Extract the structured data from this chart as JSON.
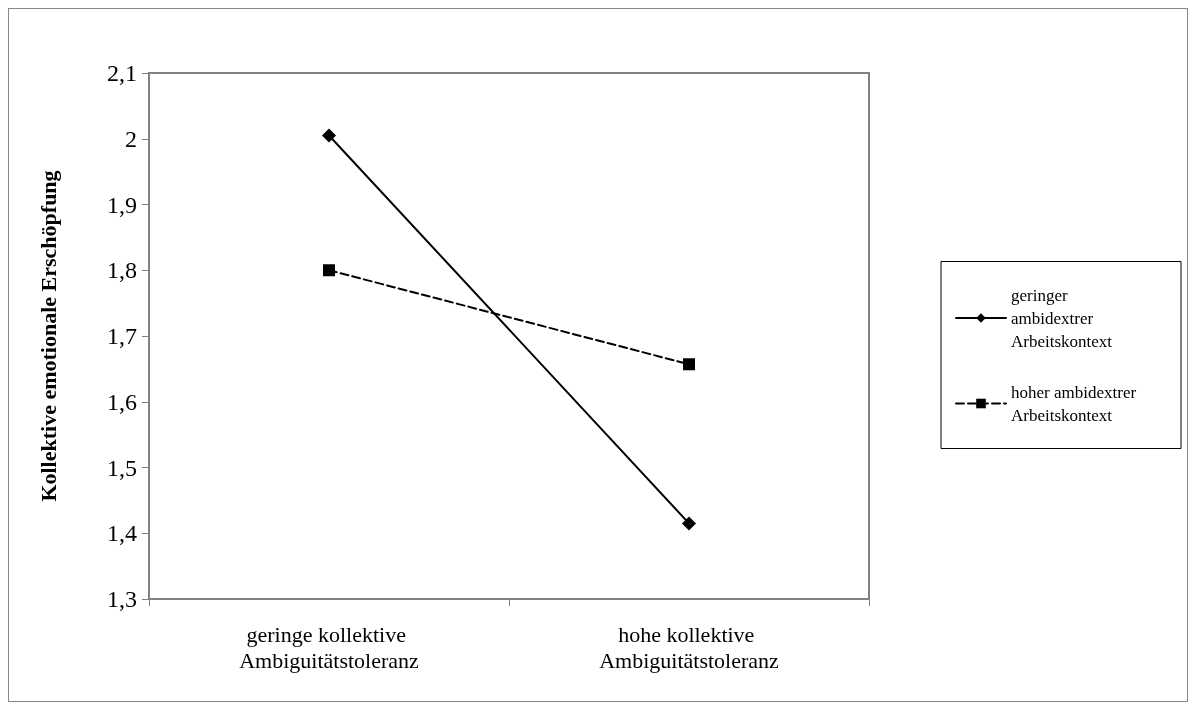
{
  "chart_data": {
    "type": "line",
    "ylabel": "Kollektive emotionale Erschöpfung",
    "categories": [
      "geringe kollektive Ambiguitätstoleranz",
      "hohe kollektive Ambiguitätstoleranz"
    ],
    "series": [
      {
        "name": "geringer ambidextrer Arbeitskontext",
        "color": "#000000",
        "values": [
          2.005,
          1.415
        ],
        "marker": "diamond",
        "line_style": "solid"
      },
      {
        "name": "hoher ambidextrer Arbeitskontext",
        "color": "#000000",
        "values": [
          1.8,
          1.657
        ],
        "marker": "square",
        "line_style": "dashed"
      }
    ],
    "ylim": [
      1.3,
      2.1
    ],
    "yticks": [
      {
        "value": 1.3,
        "label": "1,3"
      },
      {
        "value": 1.4,
        "label": "1,4"
      },
      {
        "value": 1.5,
        "label": "1,5"
      },
      {
        "value": 1.6,
        "label": "1,6"
      },
      {
        "value": 1.7,
        "label": "1,7"
      },
      {
        "value": 1.8,
        "label": "1,8"
      },
      {
        "value": 1.9,
        "label": "1,9"
      },
      2,
      {
        "value": 2.1,
        "label": "2,1"
      }
    ],
    "grid": false,
    "legend": "right"
  }
}
